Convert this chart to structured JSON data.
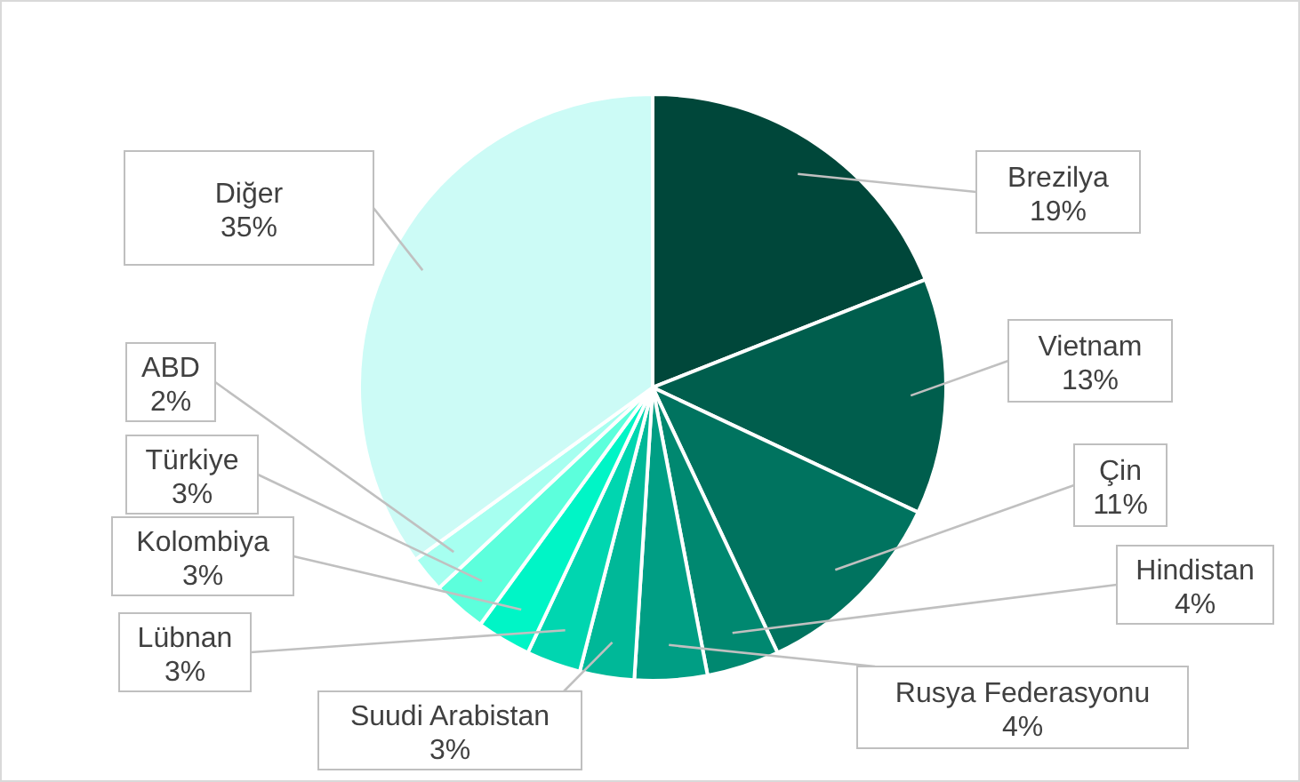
{
  "chart_data": {
    "type": "pie",
    "categories": [
      "Brezilya",
      "Vietnam",
      "Çin",
      "Hindistan",
      "Rusya Federasyonu",
      "Suudi Arabistan",
      "Lübnan",
      "Kolombiya",
      "Türkiye",
      "ABD",
      "Diğer"
    ],
    "values": [
      19,
      13,
      11,
      4,
      4,
      3,
      3,
      3,
      3,
      2,
      35
    ],
    "colors": [
      "#00473a",
      "#005e4d",
      "#00735f",
      "#008870",
      "#009e84",
      "#00b898",
      "#00d6b0",
      "#00f5c6",
      "#5cffdc",
      "#a6fff0",
      "#ccfbf6"
    ],
    "value_labels": [
      "19%",
      "13%",
      "11%",
      "4%",
      "4%",
      "3%",
      "3%",
      "3%",
      "3%",
      "2%",
      "35%"
    ]
  }
}
